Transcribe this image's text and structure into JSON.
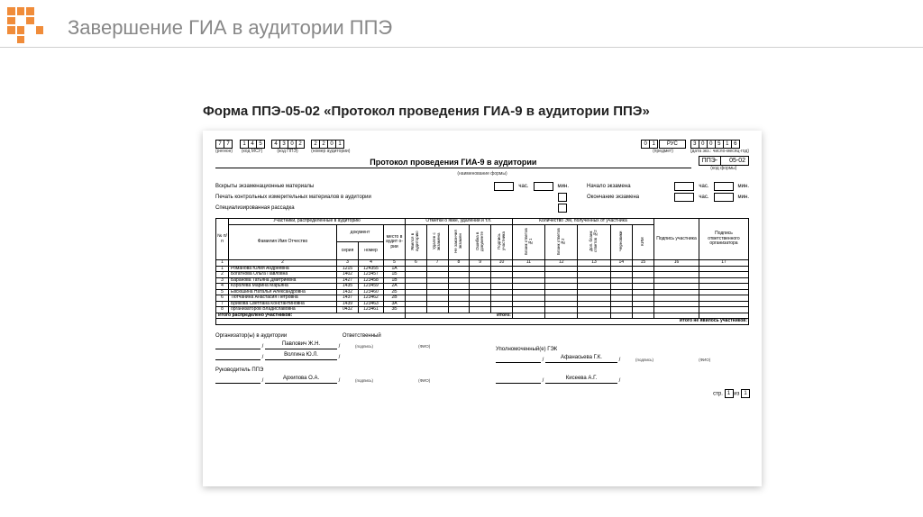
{
  "page": {
    "title": "Завершение ГИА в аудитории ППЭ",
    "form_title": "Форма ППЭ-05-02 «Протокол проведения ГИА-9 в аудитории ППЭ»"
  },
  "header": {
    "region": [
      "7",
      "7"
    ],
    "region_label": "(регион)",
    "msy": [
      "1",
      "4",
      "5"
    ],
    "msy_label": "(код МСУ)",
    "ppe": [
      "4",
      "3",
      "0",
      "2"
    ],
    "ppe_label": "(код ППЭ)",
    "aud": [
      "2",
      "2",
      "0",
      "1"
    ],
    "aud_label": "(номер аудитории)",
    "subj": [
      "0",
      "1"
    ],
    "subj_name": "РУС",
    "subj_label": "(предмет)",
    "date": [
      "3",
      "0",
      "0",
      "5",
      "1",
      "6"
    ],
    "date_label": "(дата экз.: число-месяц-год)",
    "form_code_prefix": "ППЭ-",
    "form_code": "05-02",
    "form_code_label": "(код формы)",
    "doc_title": "Протокол проведения ГИА-9 в аудитории",
    "doc_subtitle": "(наименование формы)"
  },
  "fields": {
    "f1": "Вскрыты экзаменационные материалы",
    "f2": "Печать контрольных измерительных материалов в аудитории",
    "f3": "Специализированная рассадка",
    "start_label": "Начало экзамена",
    "end_label": "Окончание экзамена",
    "hrs": "час.",
    "mins": "мин."
  },
  "table": {
    "h_num": "№ п/п",
    "h_participants": "Участники, распределённые в аудиторию",
    "h_fio": "Фамилия Имя Отчество",
    "h_doc": "документ",
    "h_series": "серия",
    "h_number": "номер",
    "h_place": "место в аудит о-рии",
    "h_marks": "Отметки о явке, удалении и т.п.",
    "h_m1": "Явился в аудиторию",
    "h_m2": "Удален с экзамена",
    "h_m3": "Не закончил экзамен",
    "h_m4": "Ошибка в документе",
    "h_m5": "Подпись участника",
    "h_em": "Количество ЭМ, полученных от участника",
    "h_e1": "Бланк ответов №1",
    "h_e2": "Бланк ответов №2",
    "h_e3": "Доп. бланк ответов №2",
    "h_e4": "Черновики",
    "h_e5": "КИМ",
    "h_sign1": "Подпись участника",
    "h_sign2": "Подпись ответственного организатора",
    "rows": [
      {
        "n": "1",
        "fio": "Романова Юлия Андреевна",
        "s": "1215",
        "num": "124355",
        "p": "1А"
      },
      {
        "n": "2",
        "fio": "Богатнова Ольга Павловна",
        "s": "1402",
        "num": "123457",
        "p": "1Б"
      },
      {
        "n": "3",
        "fio": "Баранова Татьяна Дмитриевна",
        "s": "1427",
        "num": "123458",
        "p": "1В"
      },
      {
        "n": "4",
        "fio": "Королёва Марина Марьяна",
        "s": "1435",
        "num": "123459",
        "p": "2А"
      },
      {
        "n": "5",
        "fio": "Евсюшина Наталья Александровна",
        "s": "1432",
        "num": "123460",
        "p": "2Б"
      },
      {
        "n": "6",
        "fio": "Тютчанина Анастасия Петровна",
        "s": "1437",
        "num": "123462",
        "p": "2В"
      },
      {
        "n": "7",
        "fio": "Брикова Светлана Константиновна",
        "s": "1439",
        "num": "123463",
        "p": "3А"
      },
      {
        "n": "8",
        "fio": "организаторов Владиславовна",
        "s": "0432",
        "num": "123461",
        "p": "3Б"
      }
    ],
    "colnums": [
      "1",
      "2",
      "3",
      "4",
      "5",
      "6",
      "7",
      "8",
      "9",
      "10",
      "11",
      "12",
      "13",
      "14",
      "15",
      "16",
      "17",
      "18",
      "19"
    ],
    "total1": "Итого распределено участников:",
    "total_mid": "Итого:",
    "total2": "Итого не явилось участников:"
  },
  "signatures": {
    "org_label": "Организатор(ы) в аудитории",
    "resp_label": "Ответственный",
    "org1": "Павлович Ж.Н.",
    "org2": "Волгина Ю.Л.",
    "gek_label": "Уполномоченный(е) ГЭК",
    "gek1": "Афанасьева Г.К.",
    "head_label": "Руководитель ППЭ",
    "head1": "Архипова О.А.",
    "head2": "Кисеева А.Г.",
    "sign_under": "(подпись)",
    "fio_under": "(ФИО)",
    "page_lbl": "стр.",
    "page_of": "из",
    "page_cur": "1",
    "page_tot": "1"
  },
  "colors": {
    "accent": "#f08c3a",
    "title": "#888888",
    "text": "#000000",
    "border": "#d0d0d0"
  }
}
